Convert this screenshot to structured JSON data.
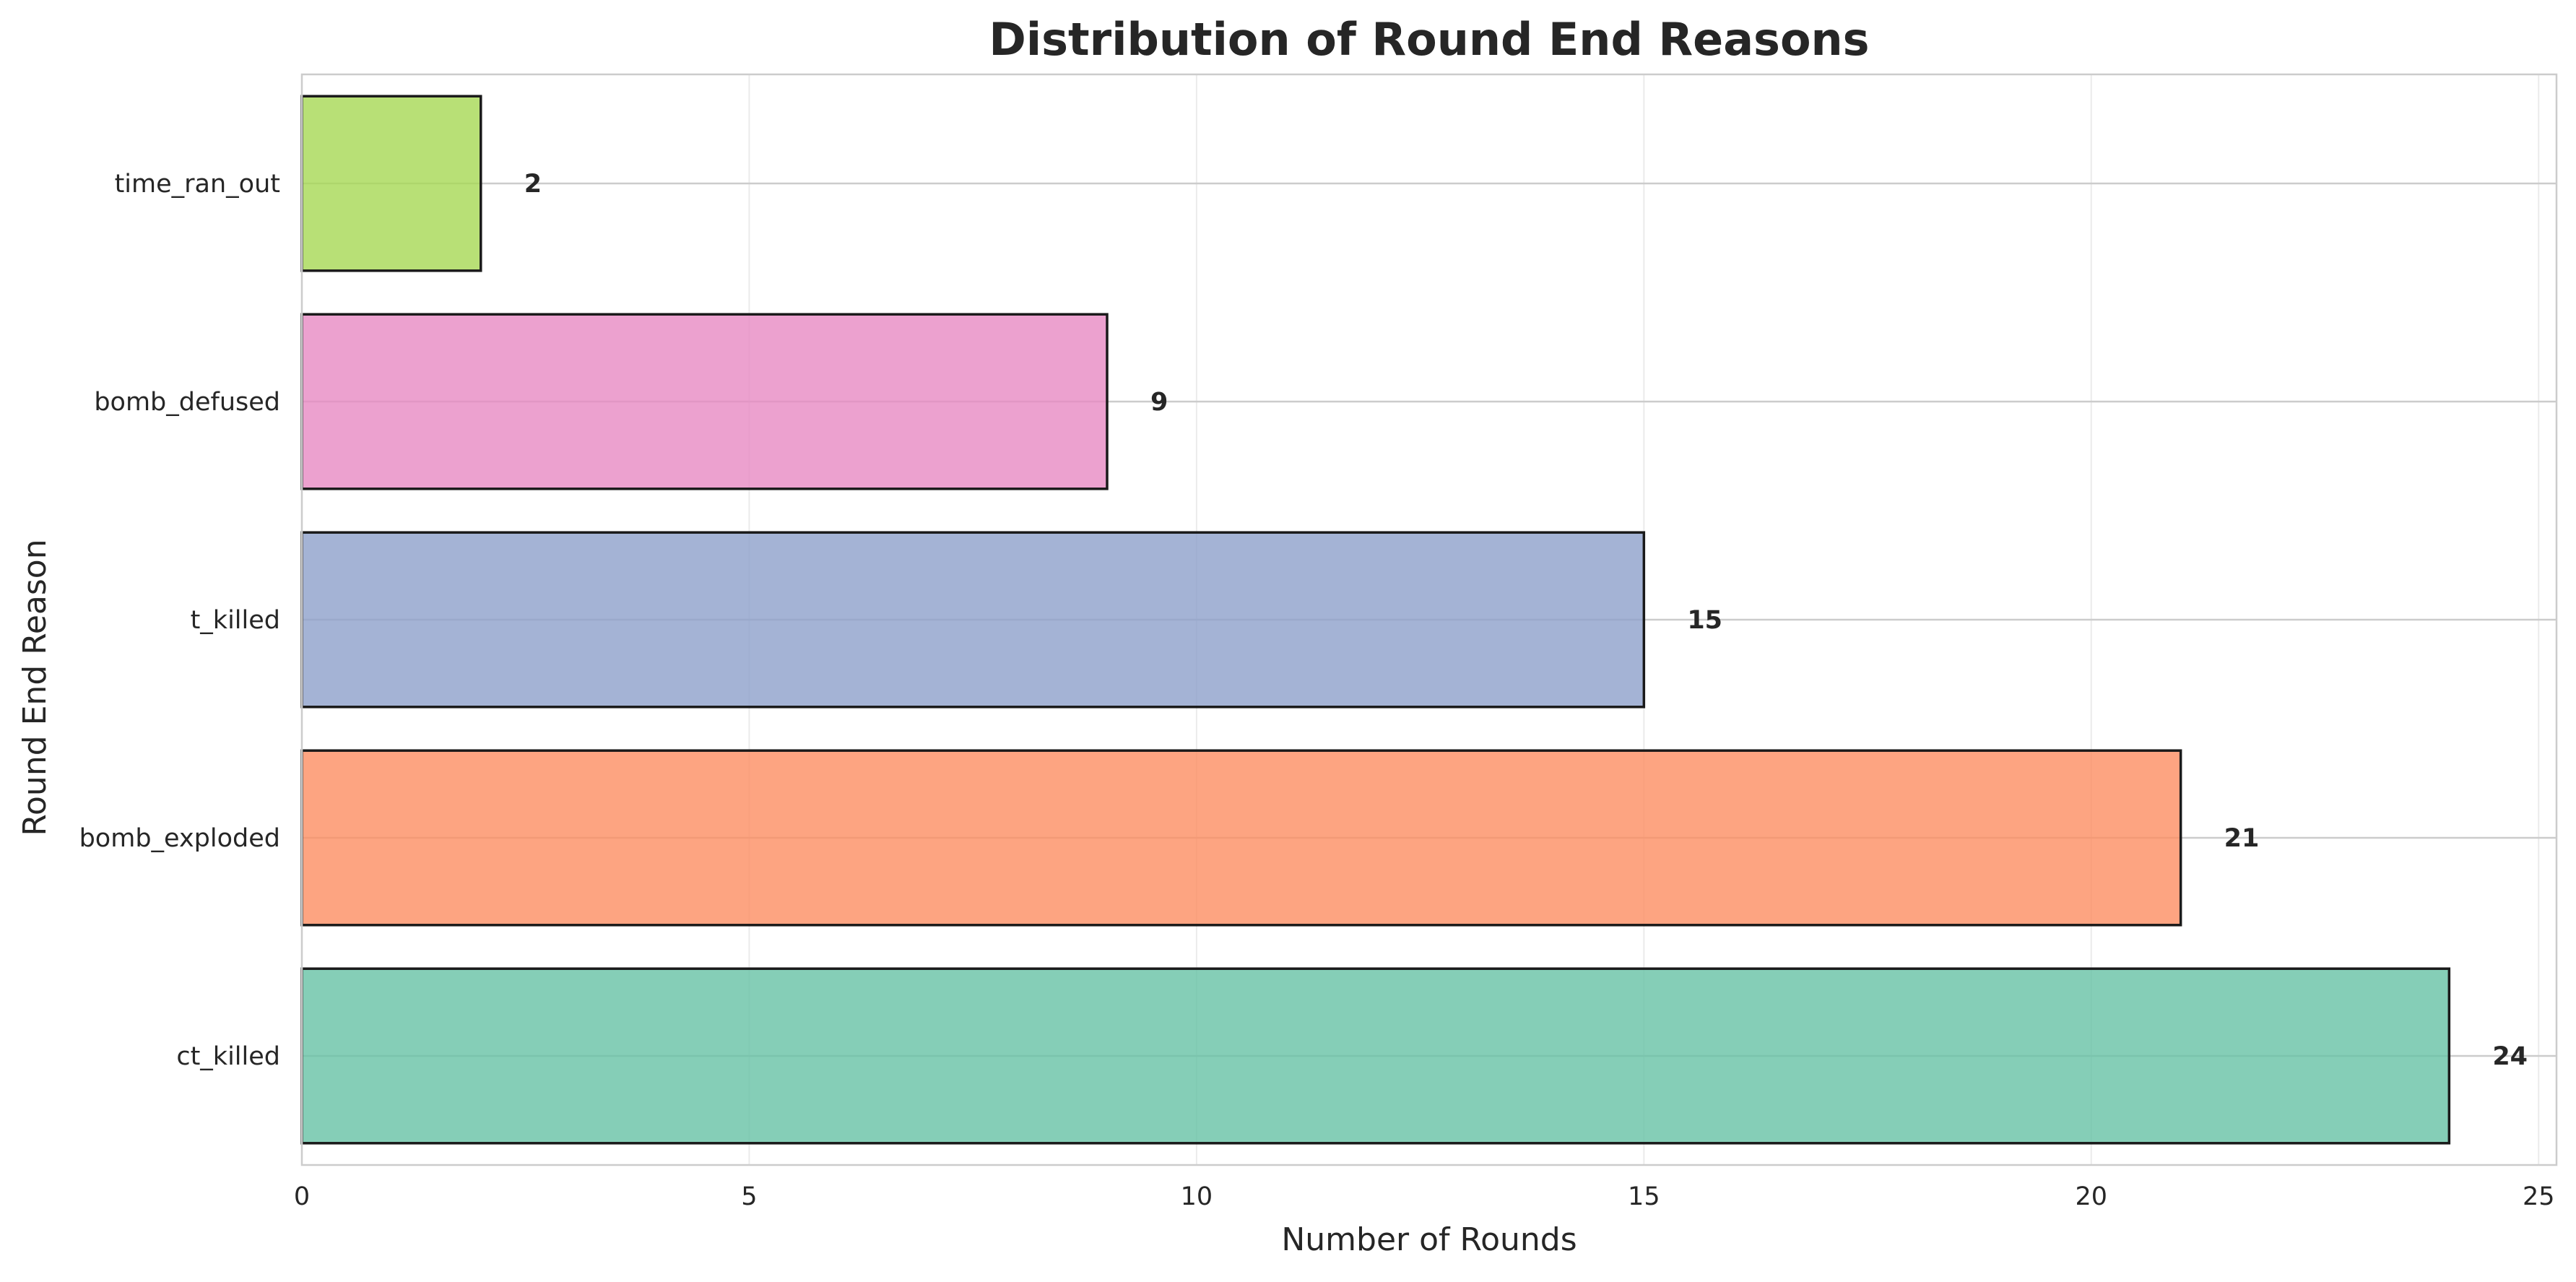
{
  "chart_data": {
    "type": "bar",
    "orientation": "horizontal",
    "title": "Distribution of Round End Reasons",
    "xlabel": "Number of Rounds",
    "ylabel": "Round End Reason",
    "categories": [
      "ct_killed",
      "bomb_exploded",
      "t_killed",
      "bomb_defused",
      "time_ran_out"
    ],
    "values": [
      24,
      21,
      15,
      9,
      2
    ],
    "value_labels": [
      "24",
      "21",
      "15",
      "9",
      "2"
    ],
    "colors": [
      "#66c2a5",
      "#fc8d62",
      "#8da0cb",
      "#e78ac3",
      "#a6d854"
    ],
    "xlim": [
      0,
      25.2
    ],
    "xticks": [
      0,
      5,
      10,
      15,
      20,
      25
    ],
    "xtick_labels": [
      "0",
      "5",
      "10",
      "15",
      "20",
      "25"
    ],
    "grid": true
  }
}
